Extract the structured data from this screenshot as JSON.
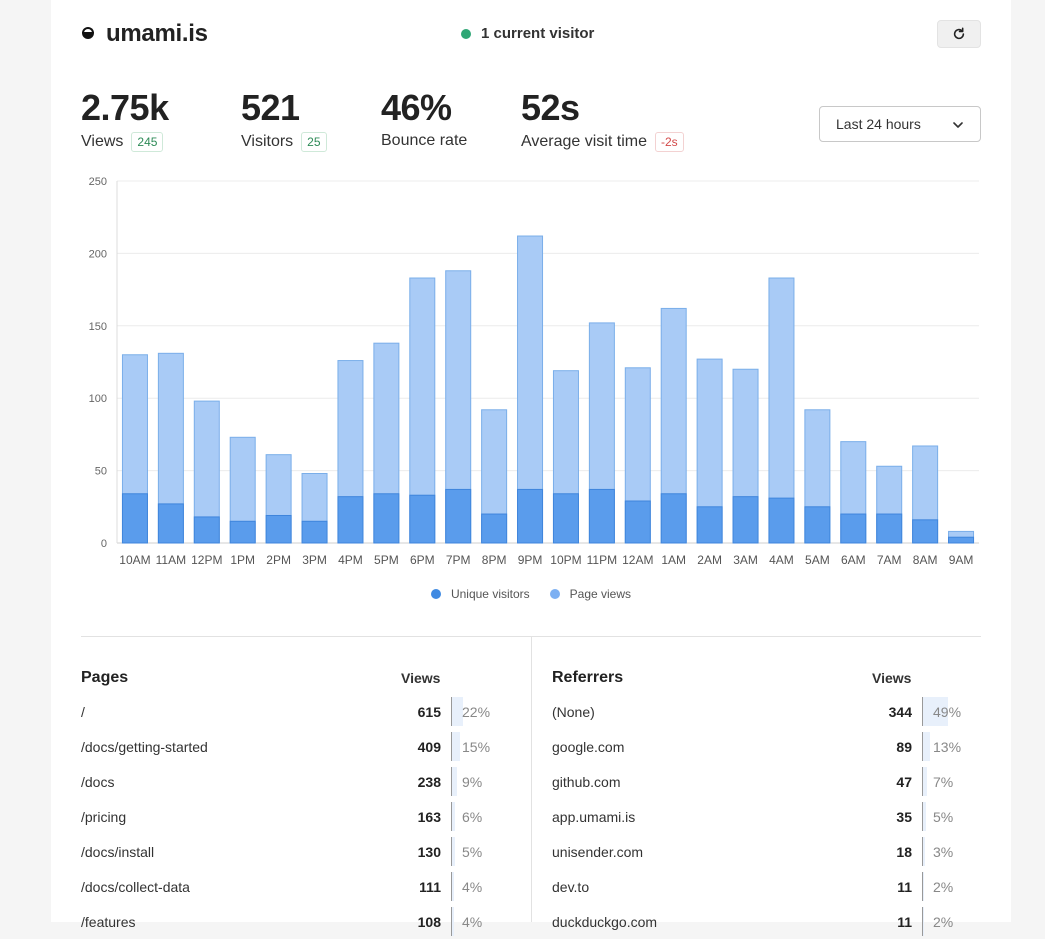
{
  "header": {
    "brand": "umami.is",
    "current_visitors": "1 current visitor"
  },
  "metrics": [
    {
      "value": "2.75k",
      "label": "Views",
      "change": "245",
      "trend": "pos"
    },
    {
      "value": "521",
      "label": "Visitors",
      "change": "25",
      "trend": "pos"
    },
    {
      "value": "46%",
      "label": "Bounce rate",
      "change": "",
      "trend": ""
    },
    {
      "value": "52s",
      "label": "Average visit time",
      "change": "-2s",
      "trend": "neg"
    }
  ],
  "range_select": {
    "value": "Last 24 hours"
  },
  "chart_data": {
    "type": "bar",
    "stacked": true,
    "categories": [
      "10AM",
      "11AM",
      "12PM",
      "1PM",
      "2PM",
      "3PM",
      "4PM",
      "5PM",
      "6PM",
      "7PM",
      "8PM",
      "9PM",
      "10PM",
      "11PM",
      "12AM",
      "1AM",
      "2AM",
      "3AM",
      "4AM",
      "5AM",
      "6AM",
      "7AM",
      "8AM",
      "9AM"
    ],
    "series": [
      {
        "name": "Unique visitors",
        "color": "#5a9cec",
        "values": [
          34,
          27,
          18,
          15,
          19,
          15,
          32,
          34,
          33,
          37,
          20,
          37,
          34,
          37,
          29,
          34,
          25,
          32,
          31,
          25,
          20,
          20,
          16,
          4
        ]
      },
      {
        "name": "Page views",
        "color": "#a9cbf6",
        "values": [
          130,
          131,
          98,
          73,
          61,
          48,
          126,
          138,
          183,
          188,
          92,
          212,
          119,
          152,
          121,
          162,
          127,
          120,
          183,
          92,
          70,
          53,
          67,
          8
        ]
      }
    ],
    "yticks": [
      "0",
      "50",
      "100",
      "150",
      "200",
      "250"
    ],
    "ylim": [
      0,
      250
    ],
    "grid": true,
    "legend": "bottom"
  },
  "pages": {
    "title": "Pages",
    "col": "Views",
    "rows": [
      {
        "name": "/",
        "views": "615",
        "pct": "22%",
        "frac": 0.22
      },
      {
        "name": "/docs/getting-started",
        "views": "409",
        "pct": "15%",
        "frac": 0.15
      },
      {
        "name": "/docs",
        "views": "238",
        "pct": "9%",
        "frac": 0.09
      },
      {
        "name": "/pricing",
        "views": "163",
        "pct": "6%",
        "frac": 0.06
      },
      {
        "name": "/docs/install",
        "views": "130",
        "pct": "5%",
        "frac": 0.05
      },
      {
        "name": "/docs/collect-data",
        "views": "111",
        "pct": "4%",
        "frac": 0.04
      },
      {
        "name": "/features",
        "views": "108",
        "pct": "4%",
        "frac": 0.04
      }
    ]
  },
  "referrers": {
    "title": "Referrers",
    "col": "Views",
    "rows": [
      {
        "name": "(None)",
        "views": "344",
        "pct": "49%",
        "frac": 0.49
      },
      {
        "name": "google.com",
        "views": "89",
        "pct": "13%",
        "frac": 0.13
      },
      {
        "name": "github.com",
        "views": "47",
        "pct": "7%",
        "frac": 0.07
      },
      {
        "name": "app.umami.is",
        "views": "35",
        "pct": "5%",
        "frac": 0.05
      },
      {
        "name": "unisender.com",
        "views": "18",
        "pct": "3%",
        "frac": 0.03
      },
      {
        "name": "dev.to",
        "views": "11",
        "pct": "2%",
        "frac": 0.02
      },
      {
        "name": "duckduckgo.com",
        "views": "11",
        "pct": "2%",
        "frac": 0.02
      }
    ]
  }
}
